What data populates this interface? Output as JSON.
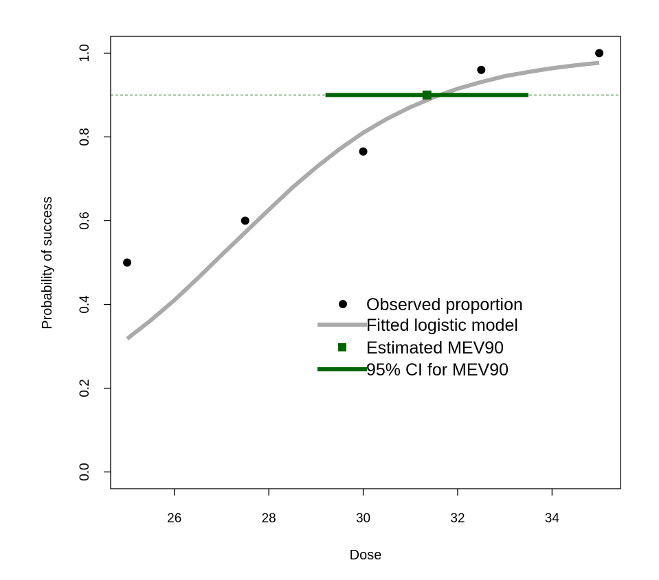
{
  "chart_data": {
    "type": "line",
    "xlabel": "Dose",
    "ylabel": "Probability of success",
    "xlim": [
      24.65,
      35.45
    ],
    "ylim": [
      -0.04,
      1.04
    ],
    "x_ticks": [
      26,
      28,
      30,
      32,
      34
    ],
    "x_tick_labels": [
      "26",
      "28",
      "30",
      "32",
      "34"
    ],
    "y_ticks": [
      0.0,
      0.2,
      0.4,
      0.6,
      0.8,
      1.0
    ],
    "y_tick_labels": [
      "0.0",
      "0.2",
      "0.4",
      "0.6",
      "0.8",
      "1.0"
    ],
    "grid": false,
    "reference_line": {
      "y": 0.9,
      "style": "dashed",
      "color": "#006400"
    },
    "series": [
      {
        "name": "Observed proportion",
        "kind": "points",
        "color": "#000000",
        "x": [
          25,
          27.5,
          30,
          32.5,
          35
        ],
        "y": [
          0.5,
          0.6,
          0.765,
          0.96,
          1.0
        ]
      },
      {
        "name": "Fitted logistic model",
        "kind": "line",
        "color": "#aaaaaa",
        "x": [
          25,
          25.5,
          26,
          26.5,
          27,
          27.5,
          28,
          28.5,
          29,
          29.5,
          30,
          30.5,
          31,
          31.5,
          32,
          32.5,
          33,
          33.5,
          34,
          34.5,
          35
        ],
        "y": [
          0.318,
          0.362,
          0.41,
          0.463,
          0.518,
          0.572,
          0.626,
          0.679,
          0.727,
          0.771,
          0.81,
          0.843,
          0.871,
          0.895,
          0.915,
          0.931,
          0.945,
          0.955,
          0.964,
          0.971,
          0.977
        ]
      },
      {
        "name": "Estimated MEV90",
        "kind": "point",
        "color": "#006400",
        "x": 31.35,
        "y": 0.9
      },
      {
        "name": "95% CI for MEV90",
        "kind": "interval",
        "color": "#006400",
        "x_low": 29.2,
        "x_high": 33.5,
        "y": 0.9
      }
    ],
    "legend": {
      "placement": "center-right",
      "entries": [
        "Observed proportion",
        "Fitted logistic model",
        "Estimated MEV90",
        "95% CI for MEV90"
      ]
    }
  }
}
